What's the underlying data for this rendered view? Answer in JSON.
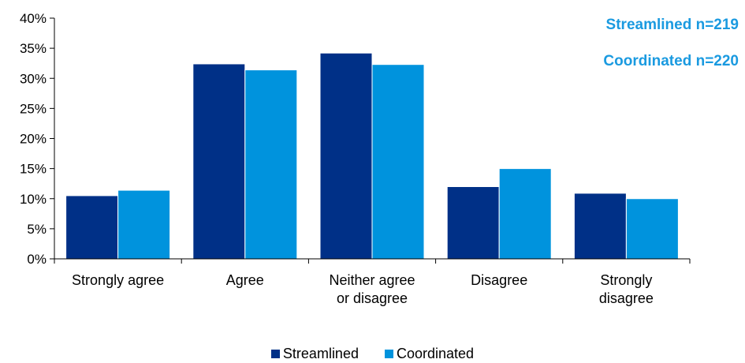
{
  "chart_data": {
    "type": "bar",
    "categories": [
      [
        "Strongly agree"
      ],
      [
        "Agree"
      ],
      [
        "Neither agree",
        "or disagree"
      ],
      [
        "Disagree"
      ],
      [
        "Strongly",
        "disagree"
      ]
    ],
    "series": [
      {
        "name": "Streamlined",
        "color": "#003087",
        "values": [
          10.5,
          32.4,
          34.2,
          12.0,
          10.9
        ]
      },
      {
        "name": "Coordinated",
        "color": "#0093dd",
        "values": [
          11.4,
          31.4,
          32.3,
          15.0,
          10.0
        ]
      }
    ],
    "ylim": [
      0,
      40
    ],
    "yticks": [
      "0%",
      "5%",
      "10%",
      "15%",
      "20%",
      "25%",
      "30%",
      "35%",
      "40%"
    ],
    "ytick_values": [
      0,
      5,
      10,
      15,
      20,
      25,
      30,
      35,
      40
    ],
    "grid": false,
    "legend": "bottom-center",
    "annotations": [
      "Streamlined n=219",
      "Coordinated n=220"
    ]
  }
}
